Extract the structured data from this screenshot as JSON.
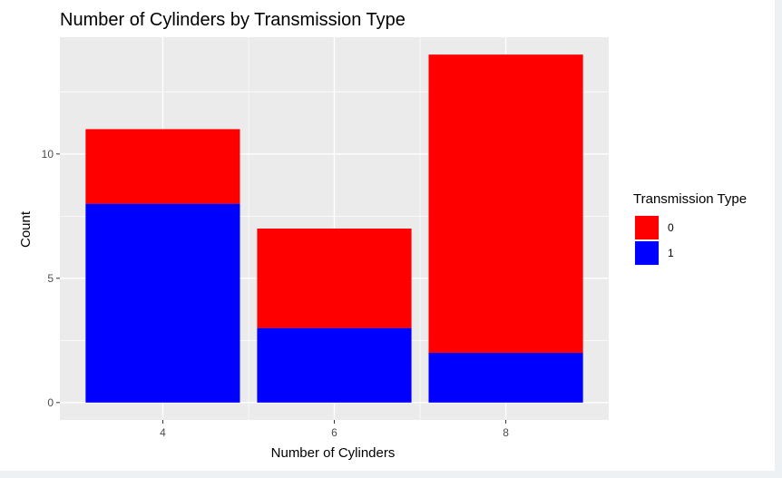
{
  "chart_data": {
    "type": "bar",
    "stacked": true,
    "title": "Number of Cylinders by Transmission Type",
    "xlabel": "Number of Cylinders",
    "ylabel": "Count",
    "categories": [
      "4",
      "6",
      "8"
    ],
    "series": [
      {
        "name": "0",
        "values": [
          3,
          4,
          12
        ],
        "color": "#ff0000"
      },
      {
        "name": "1",
        "values": [
          8,
          3,
          2
        ],
        "color": "#0000ff"
      }
    ],
    "stack_bottom_series": "1",
    "yticks": [
      0,
      5,
      10
    ],
    "ylim": [
      -0.7,
      14.7
    ],
    "legend": {
      "title": "Transmission Type",
      "position": "right"
    },
    "panel_background": "#ebebeb",
    "grid": true,
    "grid_color": "#ffffff"
  }
}
